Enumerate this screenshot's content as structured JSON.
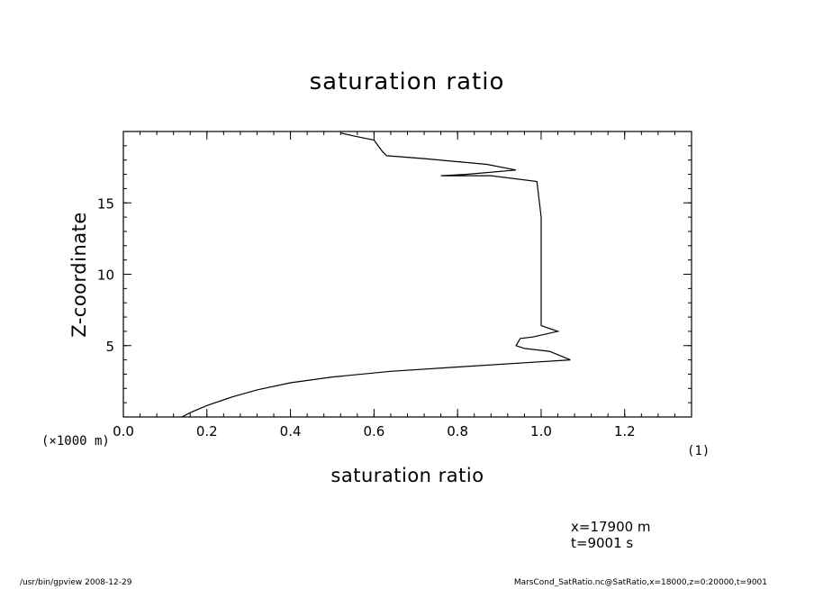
{
  "chart_data": {
    "type": "line",
    "title": "saturation ratio",
    "xlabel": "saturation ratio",
    "ylabel": "Z-coordinate",
    "x_unit": "(1)",
    "y_unit": "(×1000 m)",
    "xlim": [
      0,
      1.36
    ],
    "ylim": [
      0,
      20
    ],
    "x_ticks": [
      "0.0",
      "0.2",
      "0.4",
      "0.6",
      "0.8",
      "1.0",
      "1.2"
    ],
    "x_tick_values": [
      0,
      0.2,
      0.4,
      0.6,
      0.8,
      1.0,
      1.2
    ],
    "y_ticks": [
      "5",
      "10",
      "15"
    ],
    "y_tick_values": [
      5,
      10,
      15
    ],
    "grid": false,
    "series": [
      {
        "x": [
          0.14,
          0.16,
          0.2,
          0.26,
          0.32,
          0.4,
          0.5,
          0.64,
          0.8,
          0.96,
          1.07,
          1.02,
          0.96,
          0.94,
          0.95,
          0.98,
          1.04,
          1.0,
          1.0,
          1.0,
          1.0,
          1.0,
          0.99,
          0.88,
          0.76,
          0.82,
          0.94,
          0.87,
          0.72,
          0.63,
          0.62,
          0.61,
          0.6,
          0.55,
          0.52
        ],
        "y": [
          0.0,
          0.3,
          0.8,
          1.4,
          1.9,
          2.4,
          2.8,
          3.2,
          3.5,
          3.8,
          4.0,
          4.6,
          4.8,
          5.0,
          5.5,
          5.6,
          6.0,
          6.4,
          8.0,
          10.0,
          12.0,
          14.0,
          16.5,
          16.9,
          16.9,
          17.0,
          17.3,
          17.7,
          18.1,
          18.3,
          18.6,
          19.0,
          19.4,
          19.7,
          19.9
        ]
      }
    ]
  },
  "info": {
    "x_coord": "x=17900  m",
    "time": "t=9001  s"
  },
  "footer": {
    "left": "/usr/bin/gpview   2008-12-29",
    "right": "MarsCond_SatRatio.nc@SatRatio,x=18000,z=0:20000,t=9001"
  }
}
